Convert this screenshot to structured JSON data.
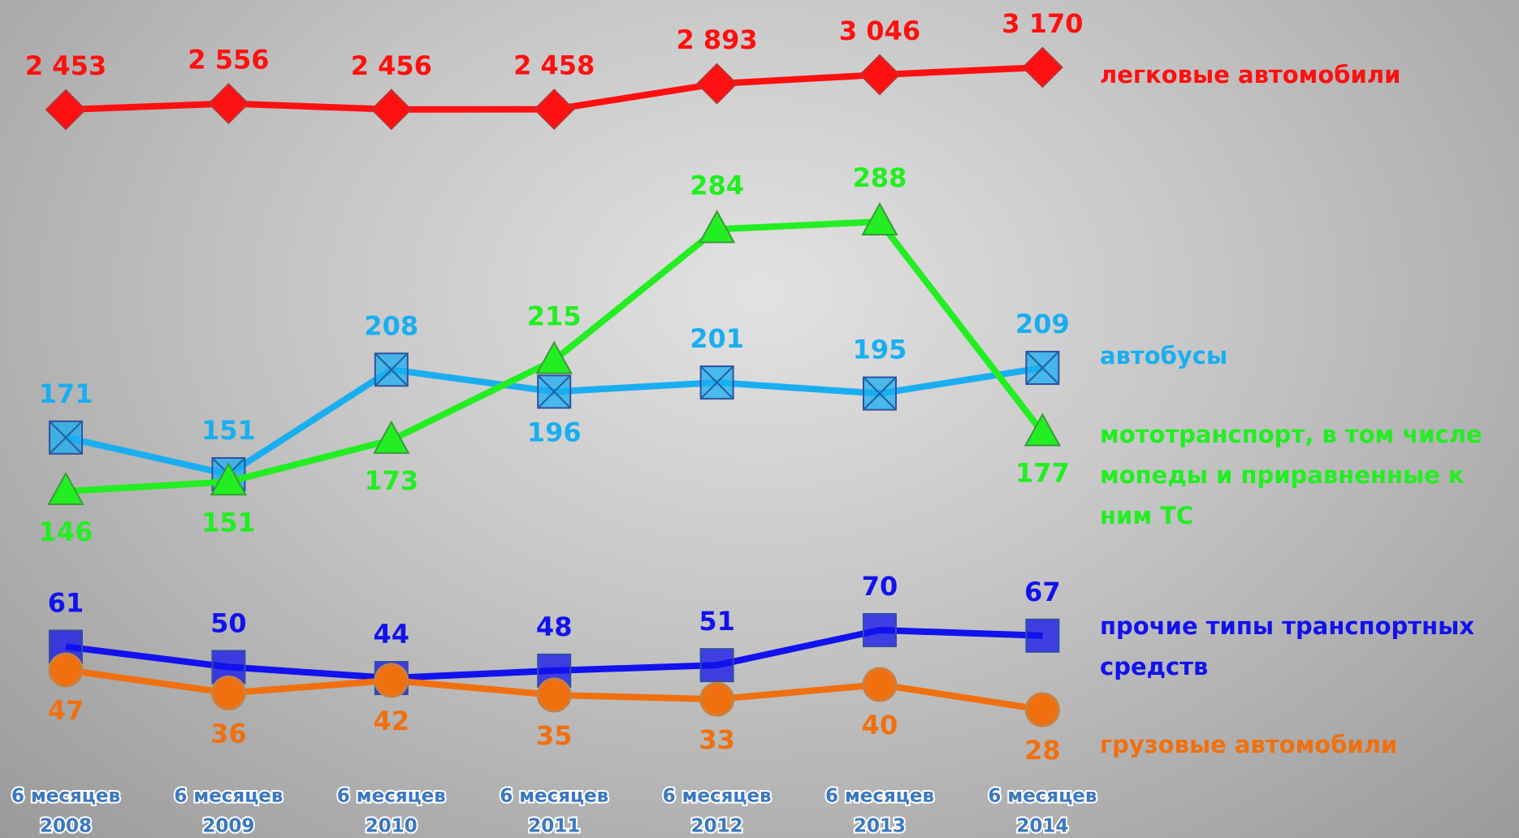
{
  "chart_data": {
    "type": "line",
    "categories": [
      [
        "6 месяцев",
        "2008"
      ],
      [
        "6 месяцев",
        "2009"
      ],
      [
        "6 месяцев",
        "2010"
      ],
      [
        "6 месяцев",
        "2011"
      ],
      [
        "6 месяцев",
        "2012"
      ],
      [
        "6 месяцев",
        "2013"
      ],
      [
        "6 месяцев",
        "2014"
      ]
    ],
    "series": [
      {
        "name": "легковые автомобили",
        "color": "#ff1010",
        "marker": "diamond",
        "values": [
          2453,
          2556,
          2456,
          2458,
          2893,
          3046,
          3170
        ],
        "value_labels": [
          "2 453",
          "2 556",
          "2 456",
          "2 458",
          "2 893",
          "3 046",
          "3 170"
        ]
      },
      {
        "name": "автобусы",
        "color": "#1aaef0",
        "marker": "square-x",
        "values": [
          171,
          151,
          208,
          196,
          201,
          195,
          209
        ]
      },
      {
        "name": "мототранспорт, в том числе мопеды и приравненные к ним ТС",
        "color": "#22ee22",
        "marker": "triangle",
        "values": [
          146,
          151,
          173,
          215,
          284,
          288,
          177
        ]
      },
      {
        "name": "прочие типы транспортных средств",
        "color": "#1212ee",
        "marker": "square",
        "values": [
          61,
          50,
          44,
          48,
          51,
          70,
          67
        ]
      },
      {
        "name": "грузовые автомобили",
        "color": "#f07010",
        "marker": "circle",
        "values": [
          47,
          36,
          42,
          35,
          33,
          40,
          28
        ]
      }
    ]
  }
}
